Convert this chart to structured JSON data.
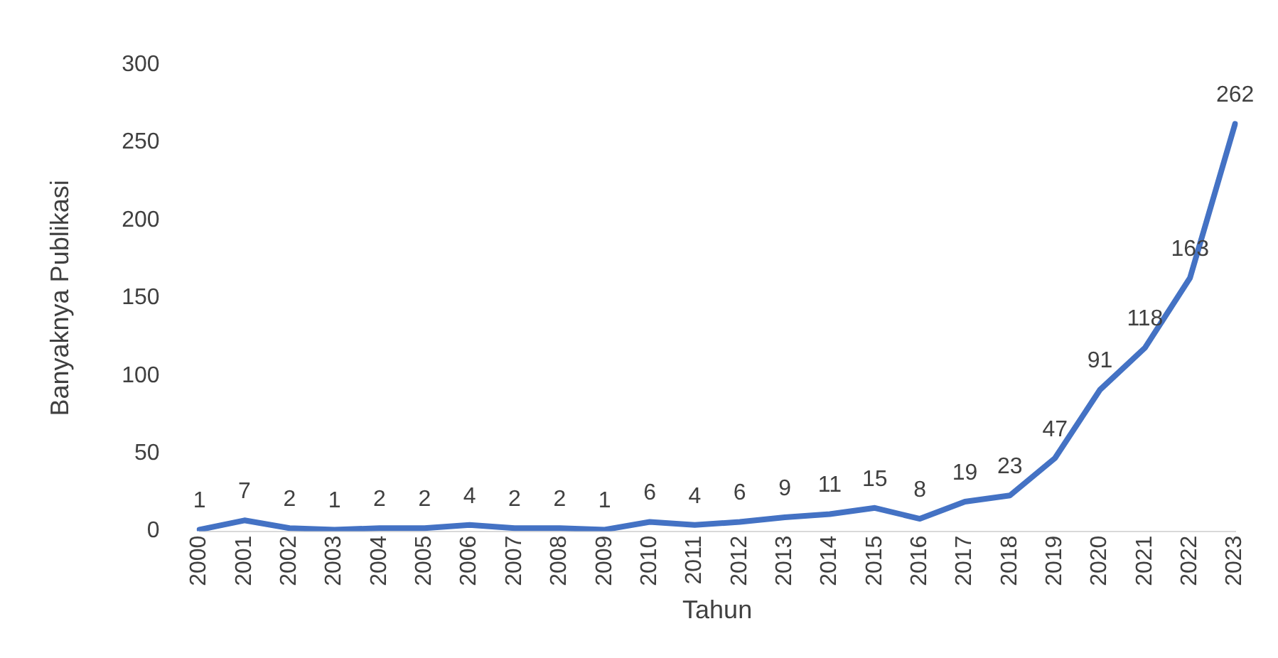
{
  "chart_data": {
    "type": "line",
    "xlabel": "Tahun",
    "ylabel": "Banyaknya Publikasi",
    "categories": [
      "2000",
      "2001",
      "2002",
      "2003",
      "2004",
      "2005",
      "2006",
      "2007",
      "2008",
      "2009",
      "2010",
      "2011",
      "2012",
      "2013",
      "2014",
      "2015",
      "2016",
      "2017",
      "2018",
      "2019",
      "2020",
      "2021",
      "2022",
      "2023"
    ],
    "series": [
      {
        "color": "#4472c4",
        "values": [
          1,
          7,
          2,
          1,
          2,
          2,
          4,
          2,
          2,
          1,
          6,
          4,
          6,
          9,
          11,
          15,
          8,
          19,
          23,
          47,
          91,
          118,
          163,
          262
        ]
      }
    ],
    "ylim": [
      0,
      300
    ],
    "yticks": [
      0,
      50,
      100,
      150,
      200,
      250,
      300
    ],
    "grid": false,
    "legend": false,
    "marker": "none",
    "line_style": "solid",
    "data_labels": true
  }
}
